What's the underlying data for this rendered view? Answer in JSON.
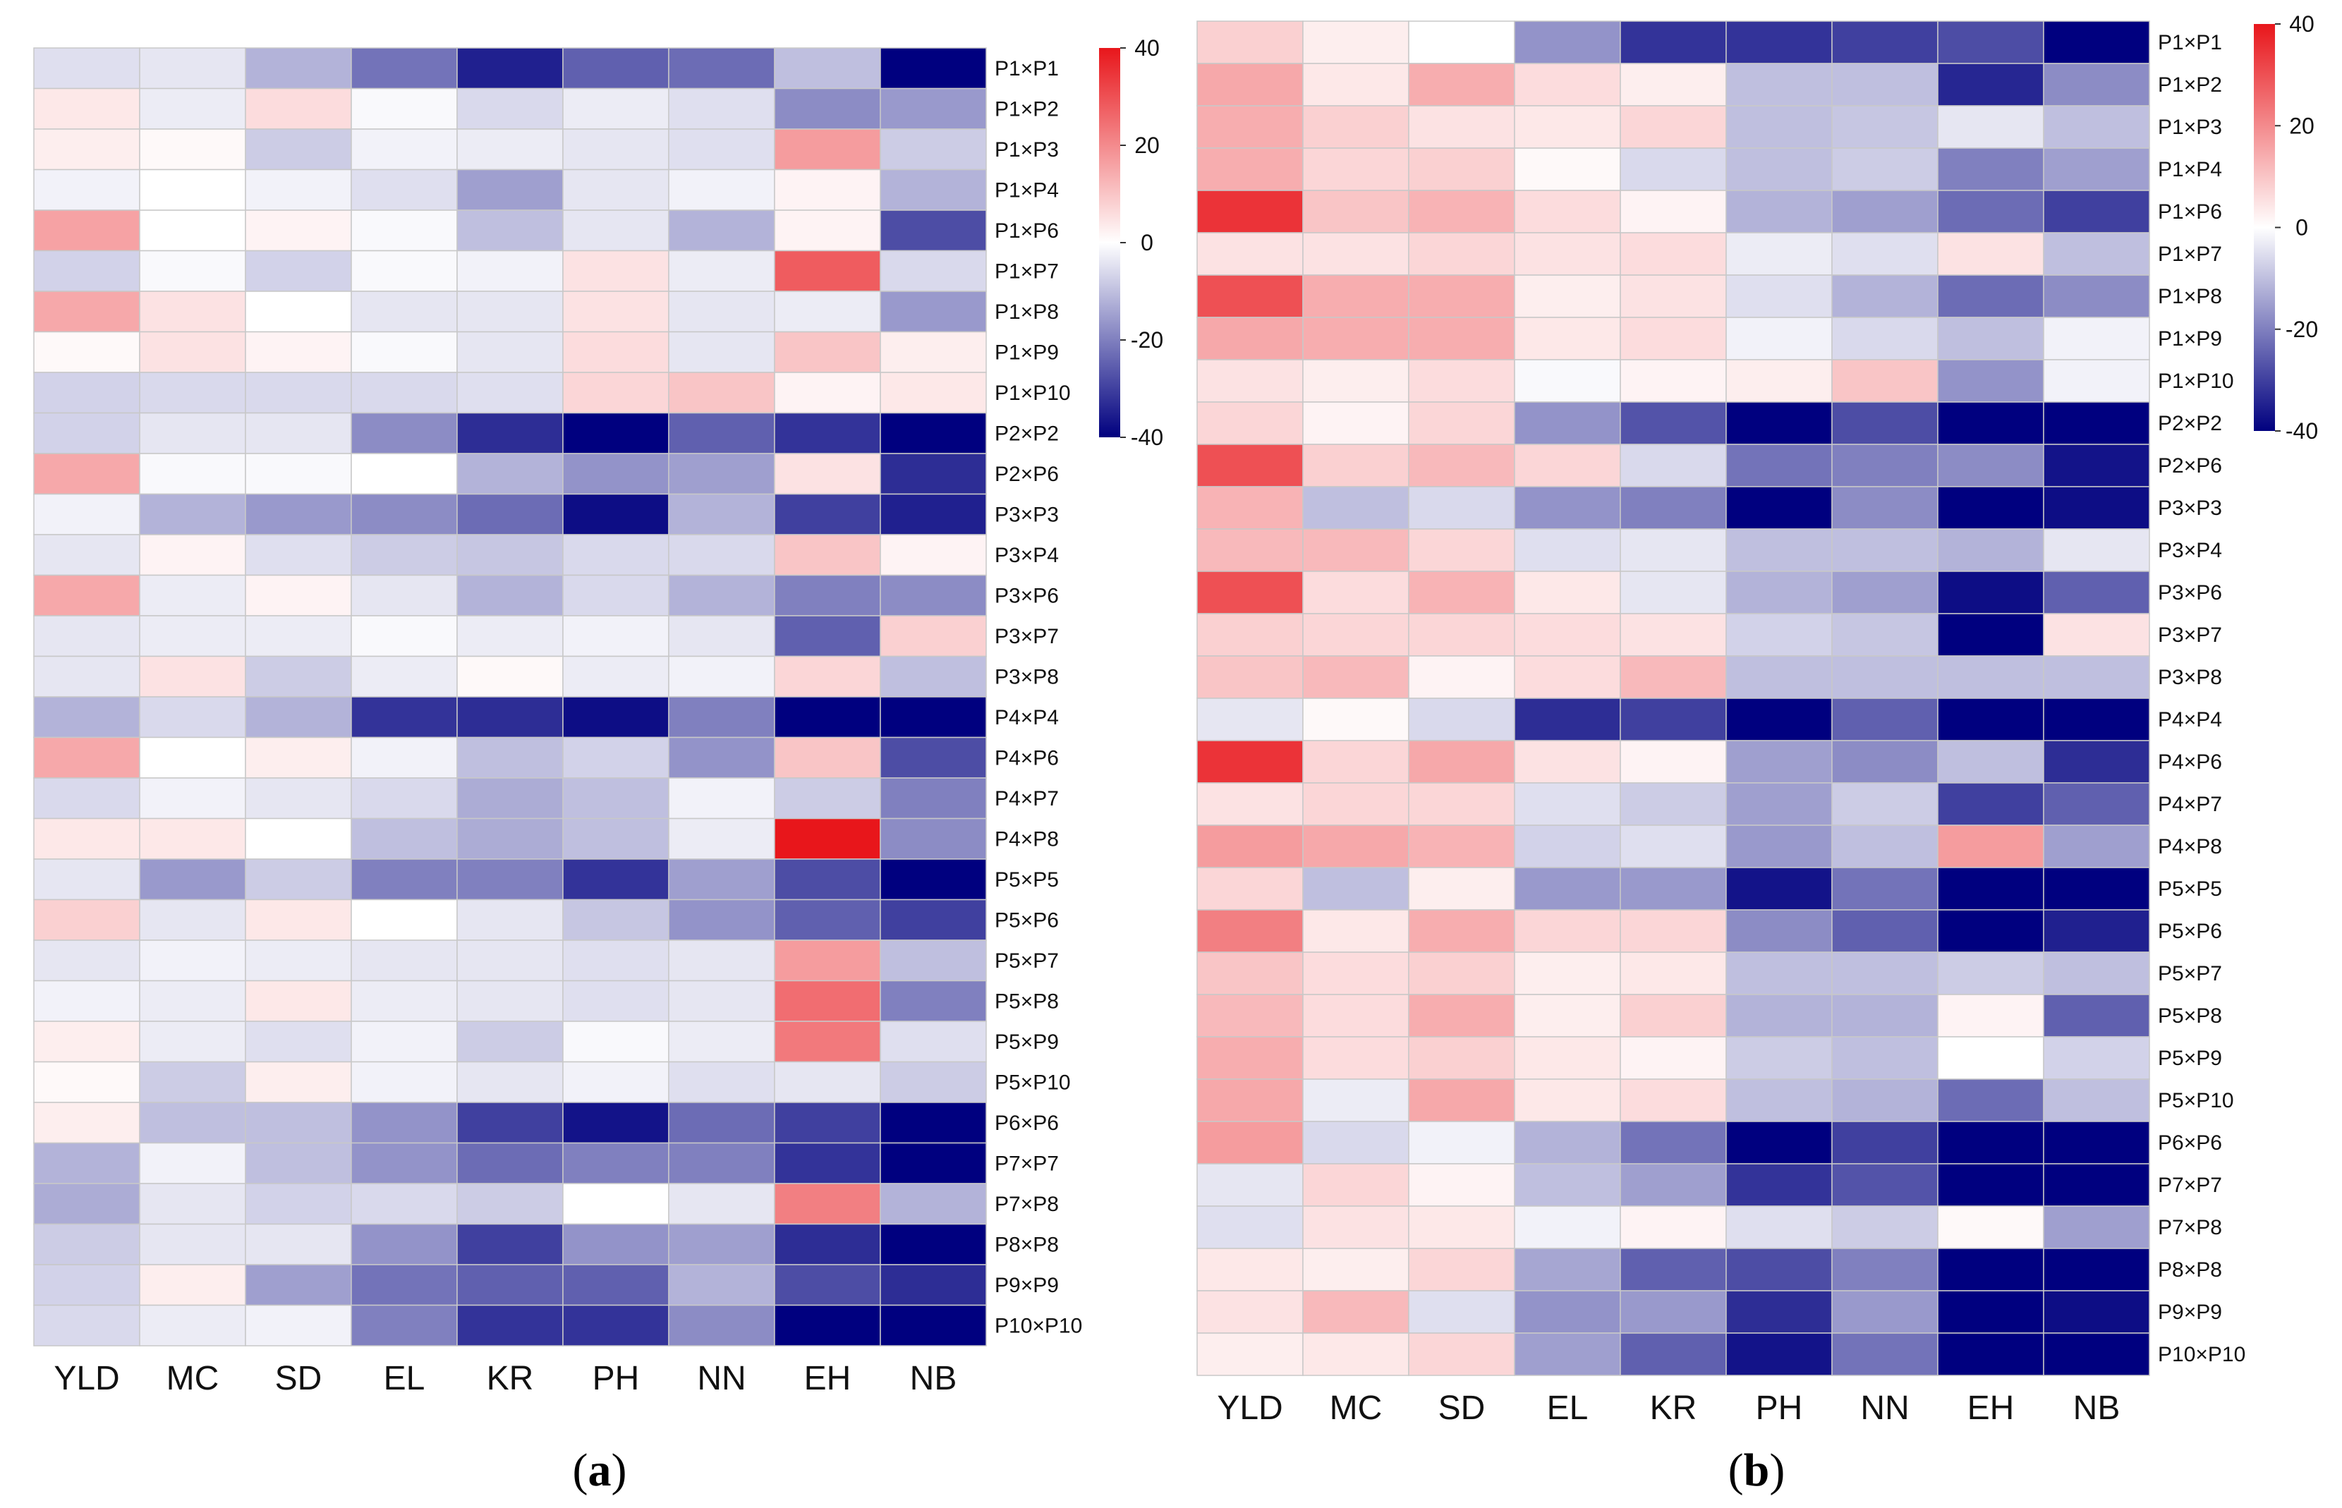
{
  "chart_data": [
    {
      "type": "heatmap",
      "panel_label": "a",
      "columns": [
        "YLD",
        "MC",
        "SD",
        "EL",
        "KR",
        "PH",
        "NN",
        "EH",
        "NB"
      ],
      "rows": [
        "P1×P1",
        "P1×P2",
        "P1×P3",
        "P1×P4",
        "P1×P6",
        "P1×P7",
        "P1×P8",
        "P1×P9",
        "P1×P10",
        "P2×P2",
        "P2×P6",
        "P3×P3",
        "P3×P4",
        "P3×P6",
        "P3×P7",
        "P3×P8",
        "P4×P4",
        "P4×P6",
        "P4×P7",
        "P4×P8",
        "P5×P5",
        "P5×P6",
        "P5×P7",
        "P5×P8",
        "P5×P9",
        "P5×P10",
        "P6×P6",
        "P7×P7",
        "P7×P8",
        "P8×P8",
        "P9×P9",
        "P10×P10"
      ],
      "values": [
        [
          -5,
          -4,
          -12,
          -22,
          -35,
          -25,
          -23,
          -10,
          -40
        ],
        [
          4,
          -3,
          6,
          -1,
          -6,
          -3,
          -5,
          -18,
          -16
        ],
        [
          3,
          1,
          -8,
          -2,
          -3,
          -4,
          -5,
          17,
          -8
        ],
        [
          -2,
          0,
          -2,
          -5,
          -15,
          -4,
          -2,
          2,
          -12
        ],
        [
          16,
          0,
          2,
          -1,
          -10,
          -4,
          -12,
          2,
          -28
        ],
        [
          -7,
          -1,
          -7,
          -1,
          -2,
          5,
          -3,
          28,
          -6
        ],
        [
          15,
          5,
          0,
          -4,
          -4,
          5,
          -4,
          -3,
          -16
        ],
        [
          1,
          5,
          2,
          -1,
          -4,
          6,
          -4,
          10,
          3
        ],
        [
          -7,
          -6,
          -6,
          -6,
          -5,
          7,
          10,
          2,
          4
        ],
        [
          -7,
          -4,
          -4,
          -18,
          -33,
          -40,
          -25,
          -32,
          -40
        ],
        [
          15,
          -1,
          -1,
          0,
          -12,
          -17,
          -15,
          5,
          -33
        ],
        [
          -2,
          -12,
          -16,
          -18,
          -23,
          -38,
          -12,
          -30,
          -35
        ],
        [
          -4,
          2,
          -5,
          -8,
          -9,
          -6,
          -6,
          10,
          2
        ],
        [
          15,
          -3,
          2,
          -4,
          -12,
          -6,
          -12,
          -20,
          -18
        ],
        [
          -4,
          -3,
          -3,
          -1,
          -3,
          -2,
          -4,
          -25,
          8
        ],
        [
          -4,
          5,
          -8,
          -3,
          1,
          -3,
          -2,
          7,
          -10
        ],
        [
          -12,
          -6,
          -12,
          -32,
          -33,
          -38,
          -20,
          -40,
          -40
        ],
        [
          15,
          0,
          3,
          -2,
          -10,
          -7,
          -17,
          10,
          -28
        ],
        [
          -6,
          -2,
          -4,
          -6,
          -13,
          -10,
          -2,
          -8,
          -20
        ],
        [
          4,
          4,
          0,
          -10,
          -13,
          -10,
          -3,
          40,
          -18
        ],
        [
          -4,
          -16,
          -8,
          -20,
          -20,
          -32,
          -15,
          -28,
          -40
        ],
        [
          8,
          -4,
          4,
          0,
          -4,
          -9,
          -17,
          -25,
          -30
        ],
        [
          -4,
          -2,
          -3,
          -4,
          -4,
          -5,
          -4,
          17,
          -10
        ],
        [
          -2,
          -3,
          4,
          -3,
          -4,
          -5,
          -4,
          25,
          -20
        ],
        [
          3,
          -3,
          -5,
          -2,
          -8,
          -1,
          -3,
          23,
          -5
        ],
        [
          1,
          -8,
          3,
          -2,
          -4,
          -2,
          -5,
          -4,
          -8
        ],
        [
          3,
          -10,
          -10,
          -17,
          -30,
          -37,
          -23,
          -30,
          -40
        ],
        [
          -12,
          -2,
          -10,
          -17,
          -23,
          -20,
          -20,
          -32,
          -40
        ],
        [
          -13,
          -4,
          -7,
          -6,
          -8,
          0,
          -4,
          22,
          -12
        ],
        [
          -8,
          -4,
          -4,
          -17,
          -30,
          -17,
          -15,
          -33,
          -40
        ],
        [
          -7,
          3,
          -15,
          -22,
          -25,
          -25,
          -12,
          -28,
          -33
        ],
        [
          -6,
          -3,
          -2,
          -20,
          -32,
          -32,
          -18,
          -40,
          -40
        ]
      ],
      "colorscale": {
        "min": -40,
        "max": 40,
        "low": "#00007f",
        "mid": "#ffffff",
        "high": "#e8161b"
      },
      "colorbar_ticks": [
        40,
        20,
        0,
        -20,
        -40
      ]
    },
    {
      "type": "heatmap",
      "panel_label": "b",
      "columns": [
        "YLD",
        "MC",
        "SD",
        "EL",
        "KR",
        "PH",
        "NN",
        "EH",
        "NB"
      ],
      "rows": [
        "P1×P1",
        "P1×P2",
        "P1×P3",
        "P1×P4",
        "P1×P6",
        "P1×P7",
        "P1×P8",
        "P1×P9",
        "P1×P10",
        "P2×P2",
        "P2×P6",
        "P3×P3",
        "P3×P4",
        "P3×P6",
        "P3×P7",
        "P3×P8",
        "P4×P4",
        "P4×P6",
        "P4×P7",
        "P4×P8",
        "P5×P5",
        "P5×P6",
        "P5×P7",
        "P5×P8",
        "P5×P9",
        "P5×P10",
        "P6×P6",
        "P7×P7",
        "P7×P8",
        "P8×P8",
        "P9×P9",
        "P10×P10"
      ],
      "values": [
        [
          8,
          3,
          0,
          -17,
          -32,
          -32,
          -30,
          -28,
          -40
        ],
        [
          15,
          4,
          14,
          6,
          3,
          -10,
          -10,
          -34,
          -18
        ],
        [
          14,
          8,
          5,
          4,
          7,
          -10,
          -9,
          -4,
          -10
        ],
        [
          14,
          7,
          8,
          1,
          -6,
          -10,
          -8,
          -20,
          -15
        ],
        [
          35,
          10,
          13,
          6,
          2,
          -12,
          -15,
          -23,
          -30
        ],
        [
          5,
          5,
          7,
          5,
          6,
          -3,
          -5,
          5,
          -10
        ],
        [
          30,
          14,
          14,
          3,
          5,
          -5,
          -12,
          -23,
          -18
        ],
        [
          15,
          14,
          14,
          4,
          6,
          -2,
          -6,
          -10,
          -2
        ],
        [
          5,
          3,
          6,
          -1,
          2,
          3,
          10,
          -17,
          -2
        ],
        [
          7,
          2,
          7,
          -17,
          -27,
          -40,
          -28,
          -40,
          -40
        ],
        [
          30,
          8,
          12,
          7,
          -6,
          -22,
          -20,
          -18,
          -37
        ],
        [
          13,
          -10,
          -6,
          -17,
          -20,
          -40,
          -18,
          -40,
          -38
        ],
        [
          12,
          12,
          7,
          -5,
          -4,
          -10,
          -10,
          -12,
          -4
        ],
        [
          30,
          6,
          13,
          4,
          -4,
          -12,
          -15,
          -38,
          -25
        ],
        [
          8,
          7,
          7,
          6,
          5,
          -7,
          -9,
          -40,
          5
        ],
        [
          10,
          12,
          2,
          6,
          12,
          -10,
          -10,
          -10,
          -10
        ],
        [
          -4,
          1,
          -6,
          -33,
          -30,
          -40,
          -25,
          -40,
          -40
        ],
        [
          35,
          7,
          15,
          5,
          2,
          -15,
          -18,
          -10,
          -33
        ],
        [
          5,
          7,
          7,
          -5,
          -8,
          -15,
          -8,
          -30,
          -25
        ],
        [
          17,
          15,
          13,
          -7,
          -5,
          -16,
          -10,
          17,
          -15
        ],
        [
          7,
          -10,
          3,
          -16,
          -16,
          -37,
          -22,
          -40,
          -40
        ],
        [
          22,
          4,
          14,
          7,
          7,
          -18,
          -25,
          -40,
          -35
        ],
        [
          10,
          6,
          8,
          3,
          4,
          -10,
          -10,
          -8,
          -10
        ],
        [
          12,
          6,
          14,
          3,
          8,
          -12,
          -12,
          2,
          -25
        ],
        [
          14,
          6,
          8,
          4,
          2,
          -8,
          -10,
          0,
          -7
        ],
        [
          15,
          -3,
          15,
          4,
          6,
          -10,
          -12,
          -23,
          -10
        ],
        [
          17,
          -6,
          -2,
          -12,
          -22,
          -40,
          -30,
          -40,
          -40
        ],
        [
          -4,
          7,
          2,
          -10,
          -15,
          -32,
          -27,
          -40,
          -40
        ],
        [
          -5,
          5,
          4,
          -2,
          2,
          -5,
          -8,
          1,
          -15
        ],
        [
          4,
          3,
          7,
          -14,
          -25,
          -28,
          -20,
          -40,
          -40
        ],
        [
          5,
          12,
          -5,
          -17,
          -16,
          -33,
          -16,
          -40,
          -38
        ],
        [
          3,
          4,
          7,
          -15,
          -25,
          -37,
          -22,
          -40,
          -40
        ]
      ],
      "colorscale": {
        "min": -40,
        "max": 40,
        "low": "#00007f",
        "mid": "#ffffff",
        "high": "#e8161b"
      },
      "colorbar_ticks": [
        40,
        20,
        0,
        -20,
        -40
      ]
    }
  ]
}
